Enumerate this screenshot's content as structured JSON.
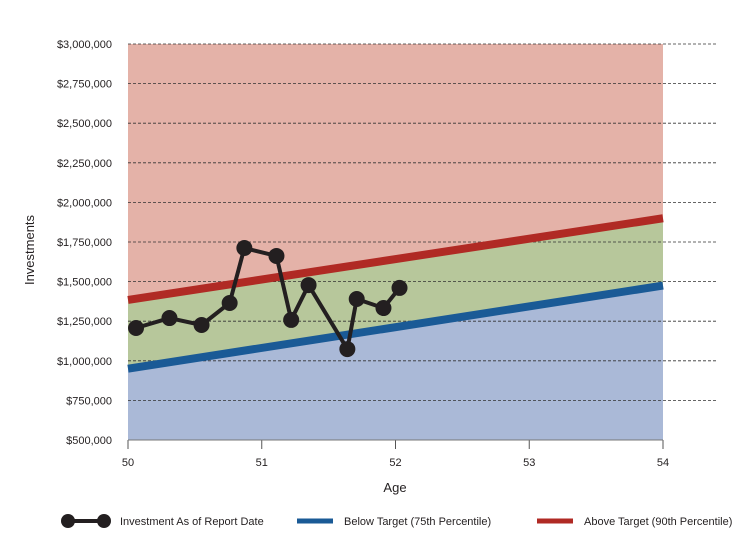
{
  "chart_data": {
    "type": "line",
    "title": "",
    "xlabel": "Age",
    "ylabel": "Investments",
    "xlim": [
      50,
      54
    ],
    "ylim": [
      500000,
      3000000
    ],
    "x_ticks": [
      "50",
      "51",
      "52",
      "53",
      "54"
    ],
    "y_ticks": [
      "$500,000",
      "$750,000",
      "$1,000,000",
      "$1,250,000",
      "$1,500,000",
      "$1,750,000",
      "$2,000,000",
      "$2,250,000",
      "$2,500,000",
      "$2,750,000",
      "$3,000,000"
    ],
    "grid": "horizontal dashed",
    "legend_position": "bottom",
    "series": [
      {
        "name": "Investment As of Report Date",
        "color": "#231f20",
        "x": [
          50.06,
          50.31,
          50.55,
          50.76,
          50.87,
          51.11,
          51.22,
          51.35,
          51.64,
          51.71,
          51.91,
          52.03
        ],
        "y": [
          1207000,
          1270000,
          1226000,
          1365000,
          1712000,
          1662000,
          1258000,
          1478000,
          1074000,
          1390000,
          1333000,
          1460000
        ]
      },
      {
        "name": "Below Target (75th Percentile)",
        "color": "#1a5a96",
        "x": [
          50,
          54
        ],
        "y": [
          950000,
          1475000
        ]
      },
      {
        "name": "Above Target (90th Percentile)",
        "color": "#b02a24",
        "x": [
          50,
          54
        ],
        "y": [
          1384000,
          1900000
        ]
      }
    ],
    "zone_colors": {
      "above": "#e4b2a8",
      "between": "#b7c79b",
      "below": "#aab9d7"
    }
  }
}
